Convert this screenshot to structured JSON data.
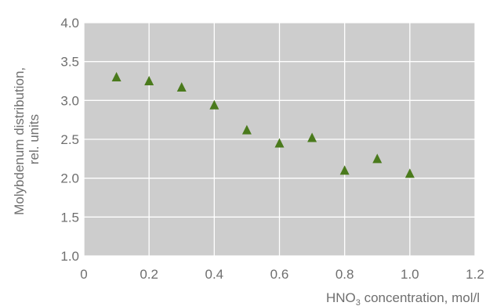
{
  "chart_data": {
    "type": "scatter",
    "title": "",
    "xlabel": {
      "prefix": "HNO",
      "subscript": "3",
      "suffix": " concentration, mol/l"
    },
    "ylabel": {
      "line1": "Molybdenum distribution,",
      "line2": "rel. units"
    },
    "xlim": [
      0,
      1.2
    ],
    "ylim": [
      1.0,
      4.0
    ],
    "x_ticks": [
      0,
      0.2,
      0.4,
      0.6,
      0.8,
      1.0,
      1.2
    ],
    "x_tick_labels": [
      "0",
      "0.2",
      "0.4",
      "0.6",
      "0.8",
      "1.0",
      "1.2"
    ],
    "y_ticks": [
      1.0,
      1.5,
      2.0,
      2.5,
      3.0,
      3.5,
      4.0
    ],
    "y_tick_labels": [
      "1.0",
      "1.5",
      "2.0",
      "2.5",
      "3.0",
      "3.5",
      "4.0"
    ],
    "grid": true,
    "marker": "triangle",
    "colors": {
      "plot_background": "#cdcdcd",
      "grid": "#ffffff",
      "marker": "#4a7a1c",
      "text": "#6f6f6f"
    },
    "points": [
      {
        "x": 0.1,
        "y": 3.3
      },
      {
        "x": 0.2,
        "y": 3.25
      },
      {
        "x": 0.3,
        "y": 3.17
      },
      {
        "x": 0.4,
        "y": 2.94
      },
      {
        "x": 0.5,
        "y": 2.62
      },
      {
        "x": 0.6,
        "y": 2.45
      },
      {
        "x": 0.7,
        "y": 2.52
      },
      {
        "x": 0.8,
        "y": 2.1
      },
      {
        "x": 0.9,
        "y": 2.25
      },
      {
        "x": 1.0,
        "y": 2.06
      }
    ]
  }
}
